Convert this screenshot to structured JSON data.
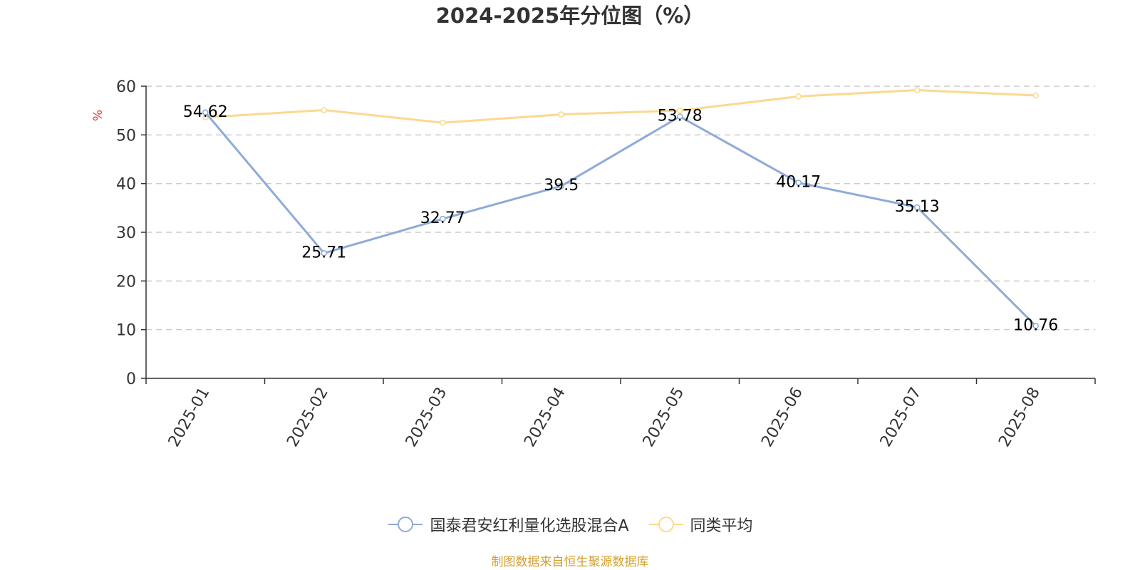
{
  "chart_data": {
    "type": "line",
    "title": "2024-2025年分位图（%）",
    "ylabel": "%",
    "xlabel": "",
    "ylim": [
      0,
      60
    ],
    "yticks": [
      0,
      10,
      20,
      30,
      40,
      50,
      60
    ],
    "grid": true,
    "legend_position": "bottom",
    "categories": [
      "2025-01",
      "2025-02",
      "2025-03",
      "2025-04",
      "2025-05",
      "2025-06",
      "2025-07",
      "2025-08"
    ],
    "series": [
      {
        "name": "国泰君安红利量化选股混合A",
        "color": "#8eabd8",
        "values": [
          54.62,
          25.71,
          32.77,
          39.5,
          53.78,
          40.17,
          35.13,
          10.76
        ],
        "labels": [
          "54.62",
          "25.71",
          "32.77",
          "39.5",
          "53.78",
          "40.17",
          "35.13",
          "10.76"
        ]
      },
      {
        "name": "同类平均",
        "color": "#fbd98f",
        "values": [
          53.6,
          55.1,
          52.5,
          54.2,
          55.0,
          57.9,
          59.2,
          58.1
        ]
      }
    ]
  },
  "footer": {
    "source": "制图数据来自恒生聚源数据库"
  },
  "colors": {
    "axis": "#333333",
    "grid": "#cccccc",
    "ylabel": "#e8322e",
    "source": "#d4a02c"
  }
}
